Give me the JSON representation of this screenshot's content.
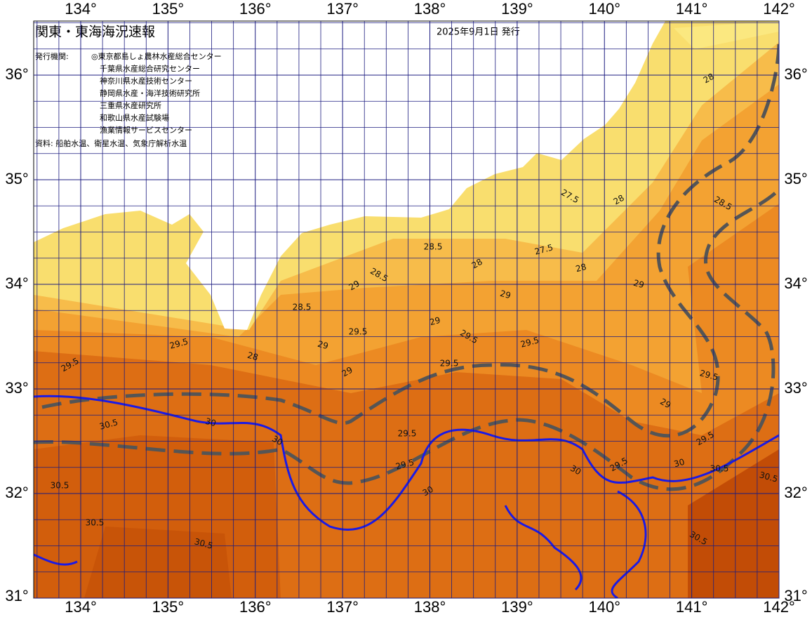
{
  "header": {
    "title": "関東・東海海況速報",
    "date": "2025年9月1日 発行",
    "publisher_label": "発行機関:",
    "publishers": [
      "◎東京都島しょ農林水産総合センター",
      "千葉県水産総合研究センター",
      "神奈川県水産技術センター",
      "静岡県水産・海洋技術研究所",
      "三重県水産研究所",
      "和歌山県水産試験場",
      "漁業情報サービスセンター"
    ],
    "source": "資料: 船舶水温、衛星水温、気象庁解析水温"
  },
  "map": {
    "lon_ticks": [
      {
        "value": 134,
        "label": "134°"
      },
      {
        "value": 135,
        "label": "135°"
      },
      {
        "value": 136,
        "label": "136°"
      },
      {
        "value": 137,
        "label": "137°"
      },
      {
        "value": 138,
        "label": "138°"
      },
      {
        "value": 139,
        "label": "139°"
      },
      {
        "value": 140,
        "label": "140°"
      },
      {
        "value": 141,
        "label": "141°"
      },
      {
        "value": 142,
        "label": "142°"
      }
    ],
    "lat_ticks": [
      {
        "value": 31,
        "label": "31°"
      },
      {
        "value": 32,
        "label": "32°"
      },
      {
        "value": 33,
        "label": "33°"
      },
      {
        "value": 34,
        "label": "34°"
      },
      {
        "value": 35,
        "label": "35°"
      },
      {
        "value": 36,
        "label": "36°"
      }
    ],
    "contour_labels": [
      "28",
      "28",
      "28.5",
      "29",
      "27.5",
      "28",
      "27.5",
      "28.5",
      "28",
      "28.5",
      "29",
      "29",
      "29.5",
      "29",
      "29.5",
      "29",
      "29.5",
      "29.5",
      "29.5",
      "29",
      "29.5",
      "30",
      "30.5",
      "30.5",
      "30",
      "29.5",
      "29.5",
      "29.5",
      "30",
      "30",
      "30",
      "30.5",
      "30.5",
      "30.5",
      "30.5",
      "29.5",
      "29.5",
      "30.5",
      "29",
      "28.5",
      "28"
    ]
  }
}
